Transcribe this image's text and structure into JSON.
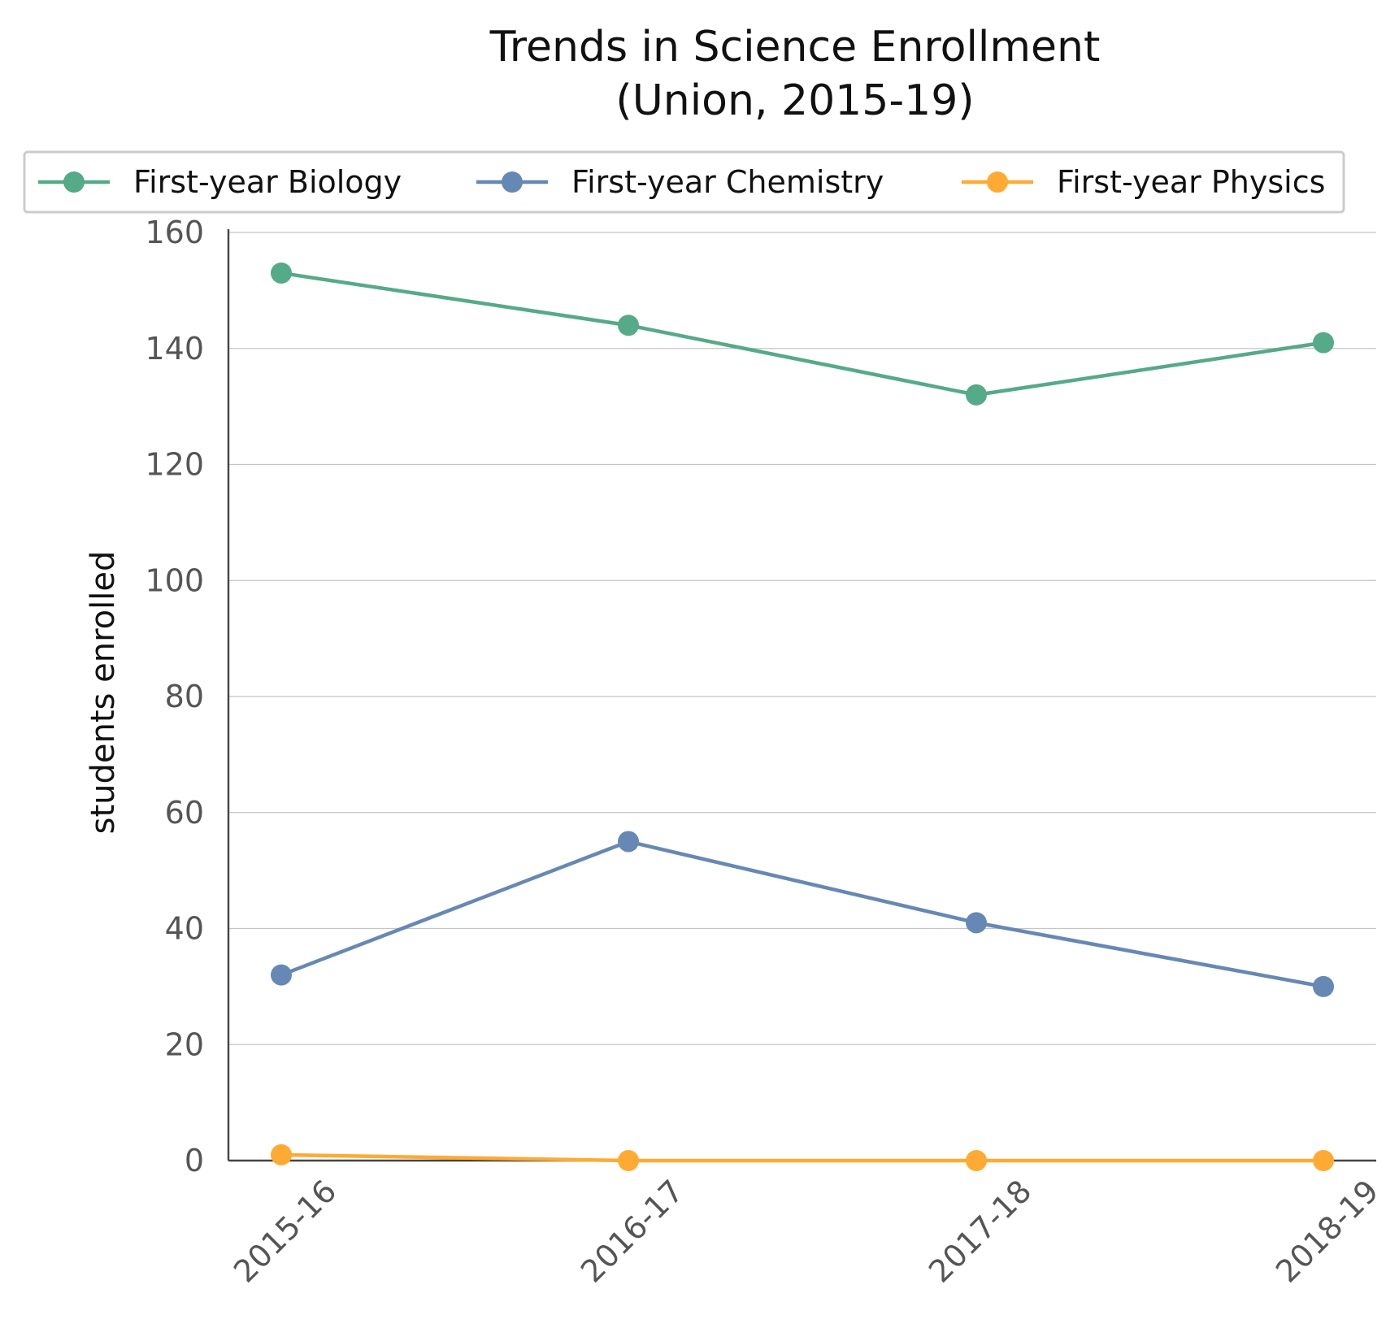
{
  "chart_data": {
    "type": "line",
    "title_line1": "Trends in Science Enrollment",
    "title_line2": "(Union, 2015-19)",
    "xlabel": "",
    "ylabel": "students enrolled",
    "ylim": [
      0,
      160
    ],
    "y_ticks": [
      0,
      20,
      40,
      60,
      80,
      100,
      120,
      140,
      160
    ],
    "categories": [
      "2015-16",
      "2016-17",
      "2017-18",
      "2018-19"
    ],
    "grid": "horizontal",
    "legend_position": "top",
    "series": [
      {
        "name": "First-year Biology",
        "color": "#55aa88",
        "values": [
          153,
          144,
          132,
          141
        ]
      },
      {
        "name": "First-year Chemistry",
        "color": "#6688b4",
        "values": [
          32,
          55,
          41,
          30
        ]
      },
      {
        "name": "First-year Physics",
        "color": "#ffaa33",
        "values": [
          1,
          0,
          0,
          0
        ]
      }
    ]
  }
}
